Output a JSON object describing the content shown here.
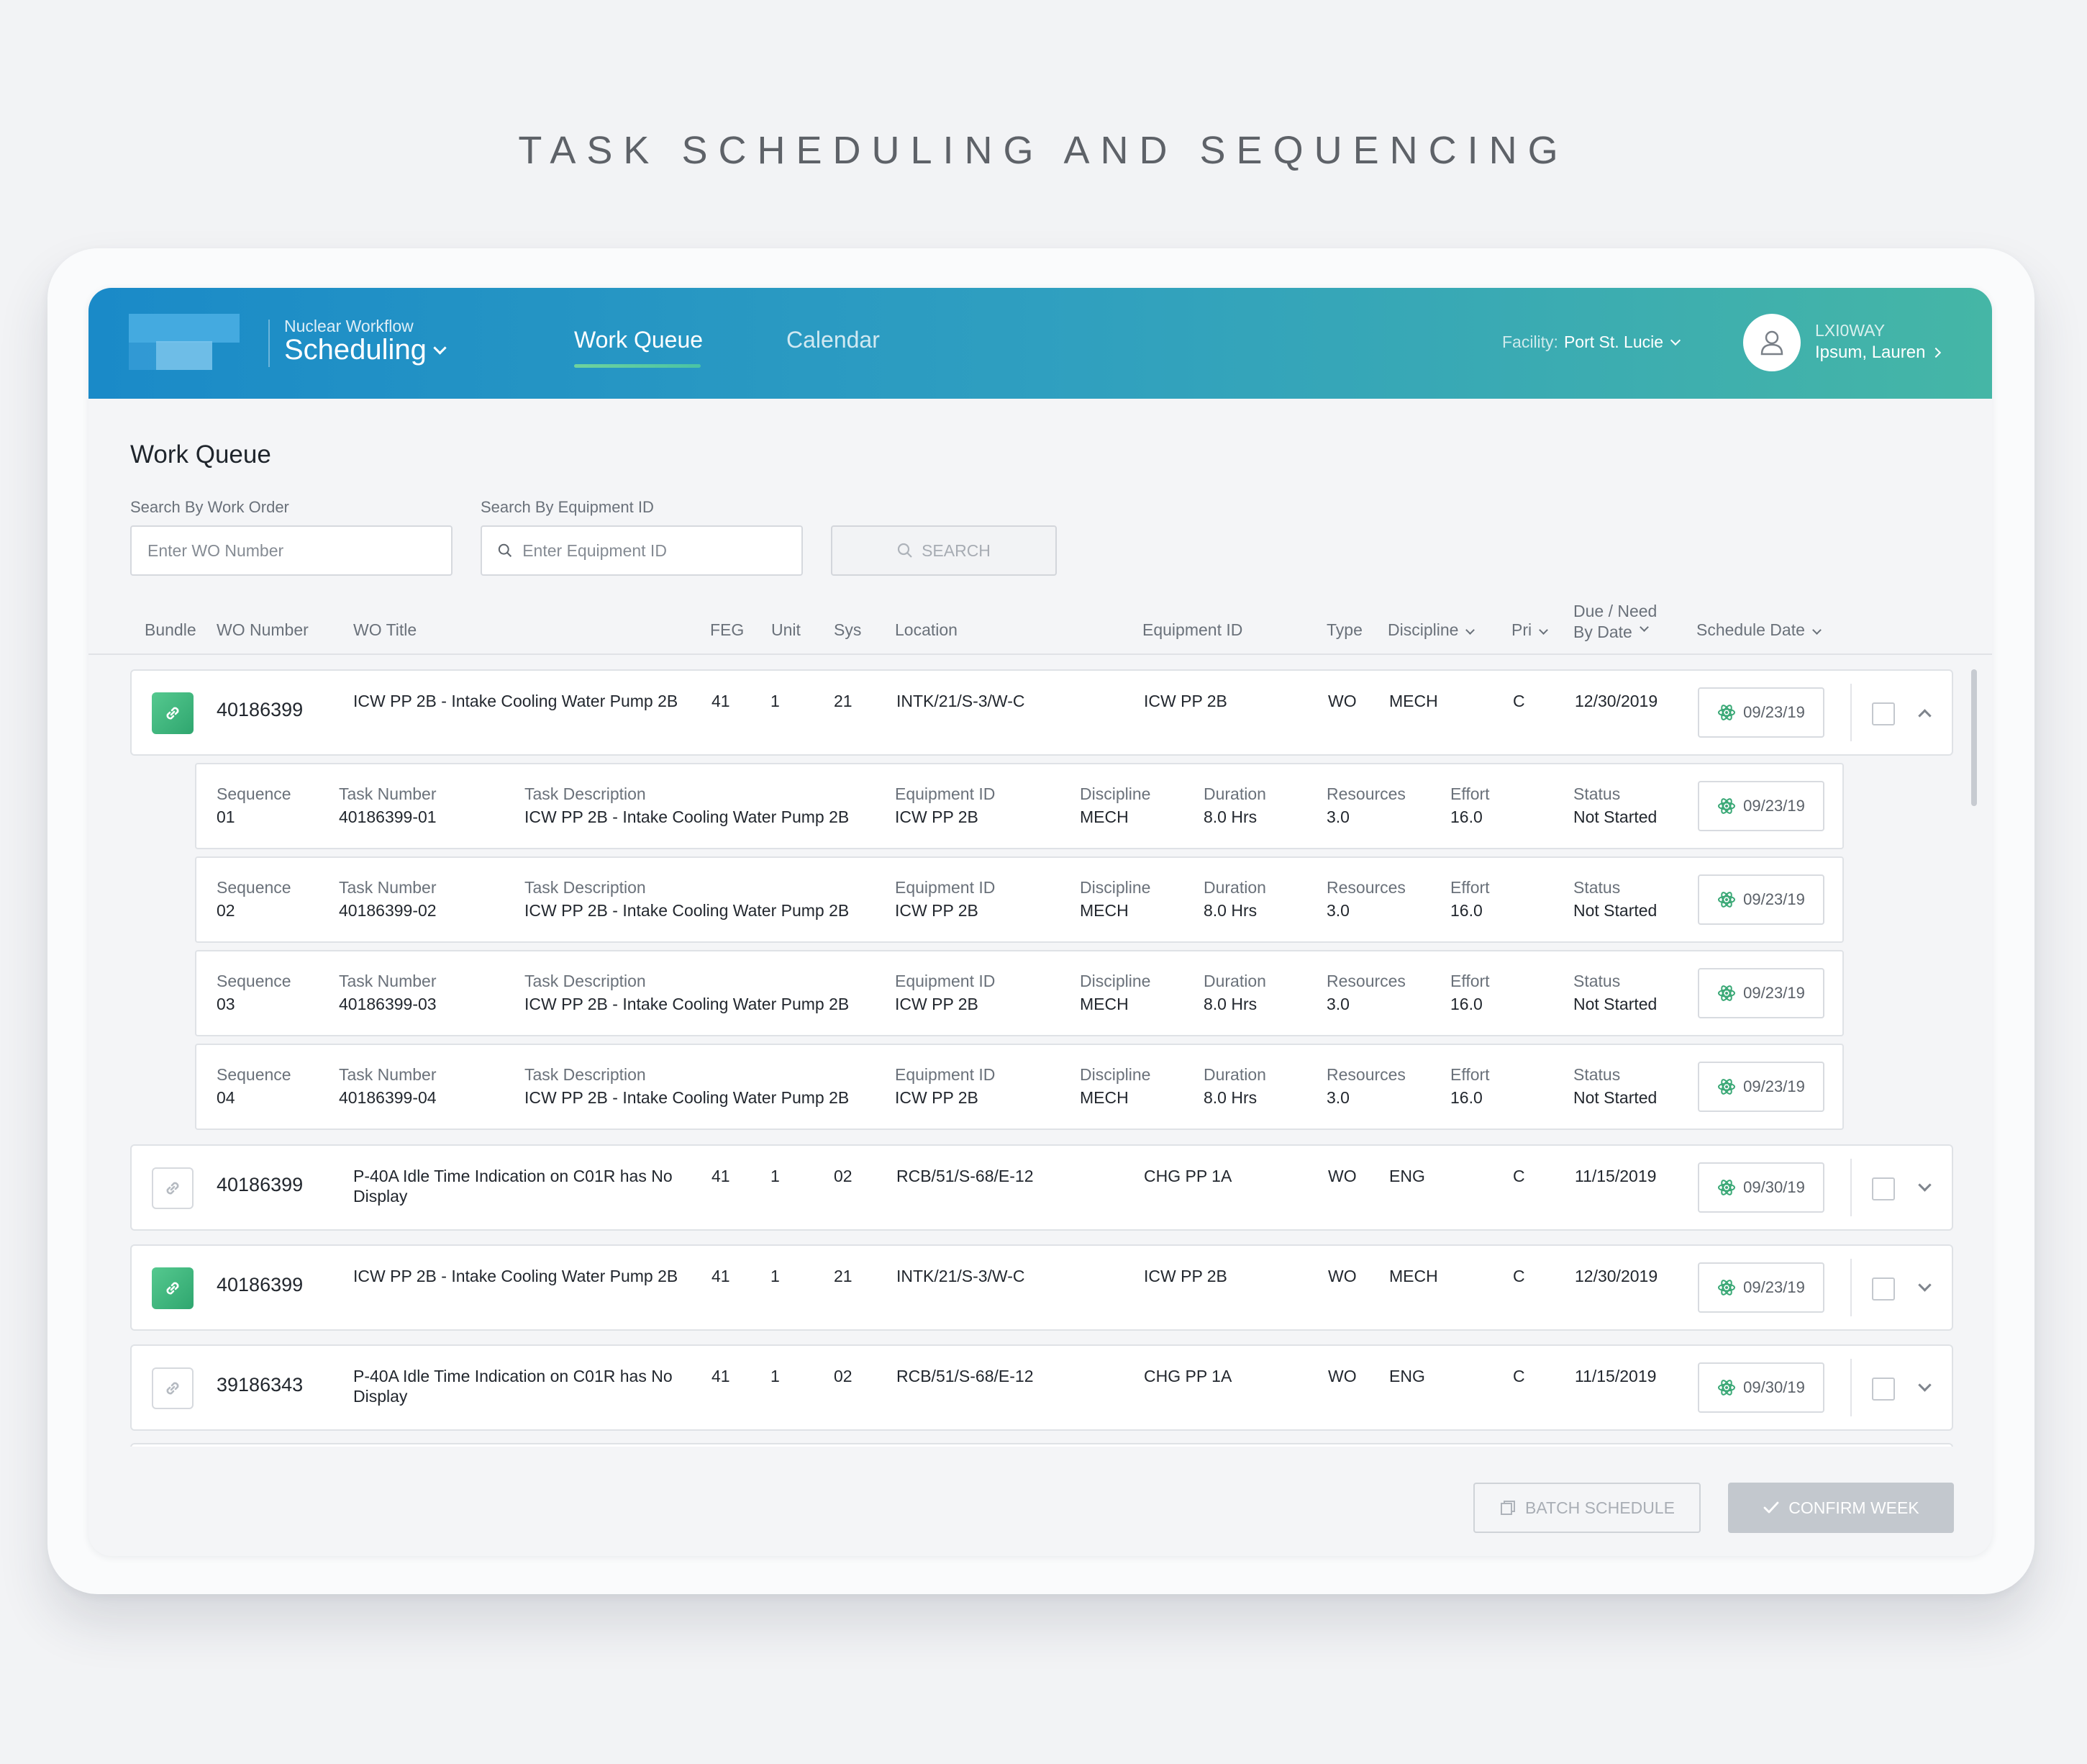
{
  "page_heading": "TASK SCHEDULING AND SEQUENCING",
  "header": {
    "app_subtitle": "Nuclear Workflow",
    "app_title": "Scheduling",
    "tabs": [
      {
        "label": "Work Queue",
        "active": true
      },
      {
        "label": "Calendar",
        "active": false
      }
    ],
    "facility_label": "Facility:",
    "facility_value": "Port St. Lucie",
    "user_code": "LXI0WAY",
    "user_name": "Ipsum, Lauren"
  },
  "main": {
    "title": "Work Queue",
    "search": {
      "wo_label": "Search By Work Order",
      "wo_placeholder": "Enter WO Number",
      "equip_label": "Search By Equipment ID",
      "equip_placeholder": "Enter Equipment ID",
      "button": "SEARCH"
    },
    "columns": {
      "bundle": "Bundle",
      "wo_number": "WO Number",
      "wo_title": "WO Title",
      "feg": "FEG",
      "unit": "Unit",
      "sys": "Sys",
      "location": "Location",
      "equipment_id": "Equipment ID",
      "type": "Type",
      "discipline": "Discipline",
      "pri": "Pri",
      "due_line1": "Due / Need",
      "due_line2": "By Date",
      "schedule_date": "Schedule Date"
    },
    "work_orders": [
      {
        "bundled": true,
        "wo": "40186399",
        "title": "ICW PP 2B - Intake Cooling Water Pump 2B",
        "feg": "41",
        "unit": "1",
        "sys": "21",
        "location": "INTK/21/S-3/W-C",
        "equipment": "ICW PP 2B",
        "type": "WO",
        "discipline": "MECH",
        "pri": "C",
        "due": "12/30/2019",
        "schedule": "09/23/19",
        "expanded": true
      },
      {
        "bundled": false,
        "wo": "40186399",
        "title": "P-40A Idle Time Indication on C01R has No Display",
        "feg": "41",
        "unit": "1",
        "sys": "02",
        "location": "RCB/51/S-68/E-12",
        "equipment": "CHG PP 1A",
        "type": "WO",
        "discipline": "ENG",
        "pri": "C",
        "due": "11/15/2019",
        "schedule": "09/30/19",
        "expanded": false
      },
      {
        "bundled": true,
        "wo": "40186399",
        "title": "ICW PP 2B - Intake Cooling Water Pump 2B",
        "feg": "41",
        "unit": "1",
        "sys": "21",
        "location": "INTK/21/S-3/W-C",
        "equipment": "ICW PP 2B",
        "type": "WO",
        "discipline": "MECH",
        "pri": "C",
        "due": "12/30/2019",
        "schedule": "09/23/19",
        "expanded": false
      },
      {
        "bundled": false,
        "wo": "39186343",
        "title": "P-40A Idle Time Indication on C01R has No Display",
        "feg": "41",
        "unit": "1",
        "sys": "02",
        "location": "RCB/51/S-68/E-12",
        "equipment": "CHG PP 1A",
        "type": "WO",
        "discipline": "ENG",
        "pri": "C",
        "due": "11/15/2019",
        "schedule": "09/30/19",
        "expanded": false
      }
    ],
    "task_labels": {
      "sequence": "Sequence",
      "task_number": "Task Number",
      "task_description": "Task Description",
      "equipment_id": "Equipment ID",
      "discipline": "Discipline",
      "duration": "Duration",
      "resources": "Resources",
      "effort": "Effort",
      "status": "Status"
    },
    "tasks": [
      {
        "sequence": "01",
        "task_number": "40186399-01",
        "description": "ICW PP 2B - Intake Cooling Water Pump 2B",
        "equipment": "ICW PP 2B",
        "discipline": "MECH",
        "duration": "8.0 Hrs",
        "resources": "3.0",
        "effort": "16.0",
        "status": "Not Started",
        "schedule": "09/23/19"
      },
      {
        "sequence": "02",
        "task_number": "40186399-02",
        "description": "ICW PP 2B - Intake Cooling Water Pump 2B",
        "equipment": "ICW PP 2B",
        "discipline": "MECH",
        "duration": "8.0 Hrs",
        "resources": "3.0",
        "effort": "16.0",
        "status": "Not Started",
        "schedule": "09/23/19"
      },
      {
        "sequence": "03",
        "task_number": "40186399-03",
        "description": "ICW PP 2B - Intake Cooling Water Pump 2B",
        "equipment": "ICW PP 2B",
        "discipline": "MECH",
        "duration": "8.0 Hrs",
        "resources": "3.0",
        "effort": "16.0",
        "status": "Not Started",
        "schedule": "09/23/19"
      },
      {
        "sequence": "04",
        "task_number": "40186399-04",
        "description": "ICW PP 2B - Intake Cooling Water Pump 2B",
        "equipment": "ICW PP 2B",
        "discipline": "MECH",
        "duration": "8.0 Hrs",
        "resources": "3.0",
        "effort": "16.0",
        "status": "Not Started",
        "schedule": "09/23/19"
      }
    ],
    "actions": {
      "batch_schedule": "BATCH SCHEDULE",
      "confirm_week": "CONFIRM WEEK"
    }
  },
  "colors": {
    "header_gradient_start": "#1a8ac8",
    "header_gradient_end": "#45b6a6",
    "bundle_active": "#3db57c",
    "schedule_icon": "#3aa876"
  },
  "icons": [
    "link-icon",
    "schedule-atom-icon",
    "search-icon",
    "user-icon",
    "chevron-down-icon",
    "chevron-up-icon",
    "chevron-right-icon",
    "batch-icon",
    "check-icon"
  ]
}
